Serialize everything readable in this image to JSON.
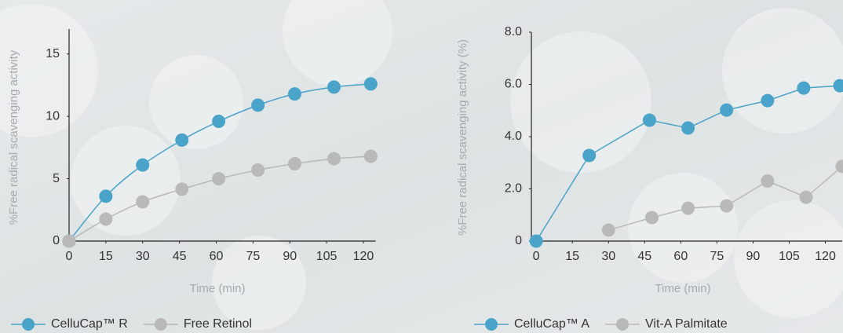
{
  "chart_data": [
    {
      "type": "line",
      "smooth": true,
      "y_label": "%Free radical scavenging activity",
      "x_label": "Time (min)",
      "xlim": [
        0,
        125
      ],
      "ylim": [
        0,
        17
      ],
      "xticks": [
        0,
        15,
        30,
        45,
        60,
        75,
        90,
        105,
        120
      ],
      "yticks": [
        0,
        5,
        10,
        15
      ],
      "series": [
        {
          "name": "CelluCap™ R",
          "color": "#4aa3c8",
          "x": [
            0,
            15,
            30,
            46,
            61,
            77,
            92,
            108,
            123
          ],
          "values": [
            0,
            3.6,
            6.1,
            8.1,
            9.6,
            10.9,
            11.8,
            12.35,
            12.6
          ]
        },
        {
          "name": "Free Retinol",
          "color": "#b9b9b9",
          "x": [
            0,
            15,
            30,
            46,
            61,
            77,
            92,
            108,
            123
          ],
          "values": [
            0,
            1.76,
            3.15,
            4.16,
            5.0,
            5.7,
            6.2,
            6.6,
            6.8
          ]
        }
      ]
    },
    {
      "type": "line",
      "smooth": false,
      "y_label": "%Free radical scavenging activity (%)",
      "x_label": "Time (min)",
      "xlim": [
        -2,
        127
      ],
      "ylim": [
        0,
        8
      ],
      "xticks": [
        0,
        15,
        30,
        45,
        60,
        75,
        90,
        105,
        120
      ],
      "yticks": [
        0,
        {
          "value": 2,
          "label": "2.0"
        },
        {
          "value": 4,
          "label": "4.0"
        },
        {
          "value": 6,
          "label": "6.0"
        },
        {
          "value": 8,
          "label": "8.0"
        }
      ],
      "series": [
        {
          "name": "CelluCap™ A",
          "color": "#4aa3c8",
          "x": [
            0,
            22,
            47,
            63,
            79,
            96,
            111,
            126
          ],
          "values": [
            0,
            3.28,
            4.63,
            4.33,
            5.02,
            5.38,
            5.86,
            5.95
          ]
        },
        {
          "name": "Vit-A Palmitate",
          "color": "#b9b9b9",
          "x": [
            30,
            48,
            63,
            79,
            96,
            112,
            127
          ],
          "values": [
            0.42,
            0.9,
            1.26,
            1.35,
            2.3,
            1.68,
            2.86
          ]
        }
      ]
    }
  ]
}
